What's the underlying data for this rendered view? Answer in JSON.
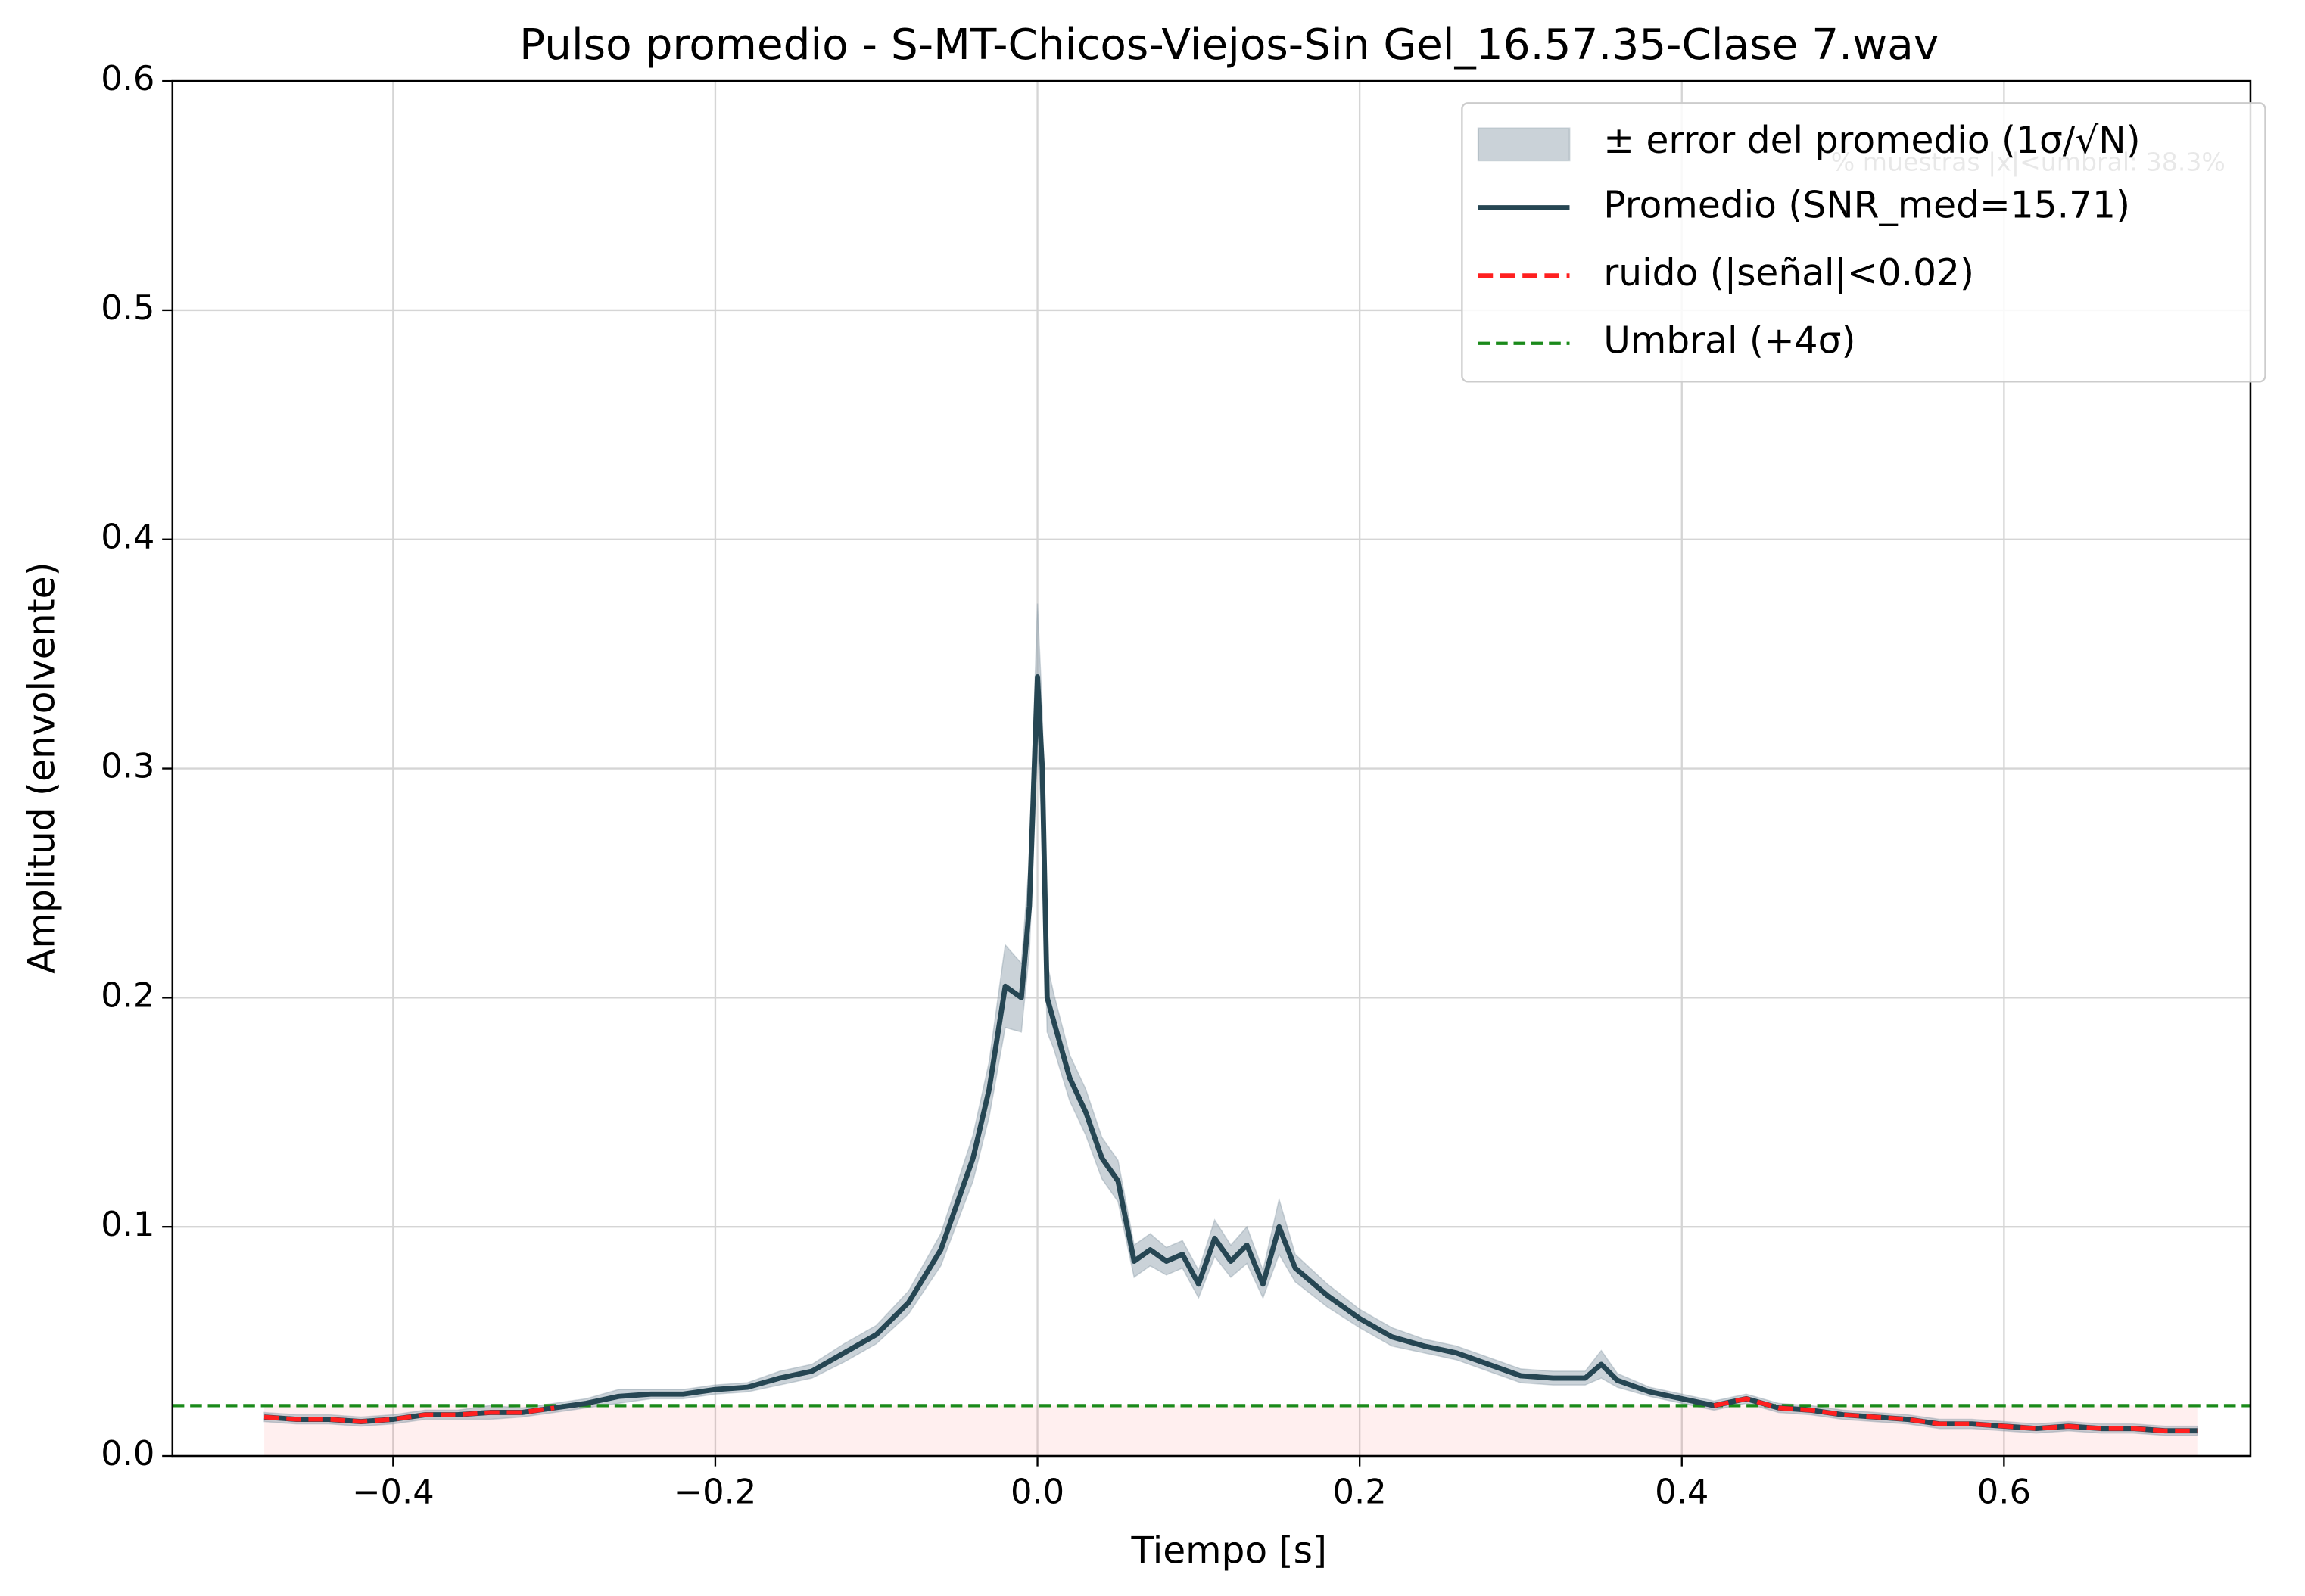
{
  "chart_data": {
    "type": "line",
    "title": "Pulso promedio - S-MT-Chicos-Viejos-Sin Gel_16.57.35-Clase 7.wav",
    "xlabel": "Tiempo [s]",
    "ylabel": "Amplitud (envolvente)",
    "annotation": "% muestras |x|<umbral: 38.3%",
    "x": [
      -0.48,
      -0.46,
      -0.44,
      -0.42,
      -0.4,
      -0.38,
      -0.36,
      -0.34,
      -0.32,
      -0.3,
      -0.28,
      -0.26,
      -0.24,
      -0.22,
      -0.2,
      -0.18,
      -0.16,
      -0.14,
      -0.12,
      -0.1,
      -0.08,
      -0.06,
      -0.04,
      -0.03,
      -0.02,
      -0.01,
      -0.005,
      0.0,
      0.003,
      0.006,
      0.01,
      0.02,
      0.03,
      0.04,
      0.05,
      0.06,
      0.07,
      0.08,
      0.09,
      0.1,
      0.11,
      0.12,
      0.13,
      0.14,
      0.15,
      0.16,
      0.18,
      0.2,
      0.22,
      0.24,
      0.26,
      0.28,
      0.3,
      0.32,
      0.34,
      0.35,
      0.36,
      0.38,
      0.4,
      0.42,
      0.44,
      0.46,
      0.48,
      0.5,
      0.52,
      0.54,
      0.56,
      0.58,
      0.6,
      0.62,
      0.64,
      0.66,
      0.68,
      0.7,
      0.72
    ],
    "series": [
      {
        "name": "Promedio (SNR_med=15.71)",
        "color": "#264653",
        "values": [
          0.017,
          0.016,
          0.016,
          0.015,
          0.016,
          0.018,
          0.018,
          0.019,
          0.019,
          0.021,
          0.023,
          0.026,
          0.027,
          0.027,
          0.029,
          0.03,
          0.034,
          0.037,
          0.045,
          0.053,
          0.067,
          0.09,
          0.13,
          0.16,
          0.205,
          0.2,
          0.24,
          0.34,
          0.3,
          0.2,
          0.19,
          0.165,
          0.15,
          0.13,
          0.12,
          0.085,
          0.09,
          0.085,
          0.088,
          0.075,
          0.095,
          0.085,
          0.092,
          0.075,
          0.1,
          0.082,
          0.07,
          0.06,
          0.052,
          0.048,
          0.045,
          0.04,
          0.035,
          0.034,
          0.034,
          0.04,
          0.033,
          0.028,
          0.025,
          0.022,
          0.025,
          0.021,
          0.02,
          0.018,
          0.017,
          0.016,
          0.014,
          0.014,
          0.013,
          0.012,
          0.013,
          0.012,
          0.012,
          0.011,
          0.011
        ]
      },
      {
        "name": "ruido (|señal|<0.02)",
        "color": "#ff2020",
        "values": [
          0.017,
          0.016,
          0.016,
          0.015,
          0.016,
          0.018,
          0.018,
          0.019,
          0.019,
          0.021,
          null,
          null,
          null,
          null,
          null,
          null,
          null,
          null,
          null,
          null,
          null,
          null,
          null,
          null,
          null,
          null,
          null,
          null,
          null,
          null,
          null,
          null,
          null,
          null,
          null,
          null,
          null,
          null,
          null,
          null,
          null,
          null,
          null,
          null,
          null,
          null,
          null,
          null,
          null,
          null,
          null,
          null,
          null,
          null,
          null,
          null,
          null,
          null,
          null,
          0.022,
          0.025,
          0.021,
          0.02,
          0.018,
          0.017,
          0.016,
          0.014,
          0.014,
          0.013,
          0.012,
          0.013,
          0.012,
          0.012,
          0.011,
          0.011
        ]
      }
    ],
    "error_band": {
      "name": "± error del promedio (1σ/√N)",
      "color": "#8a9ba8",
      "values": [
        0.002,
        0.002,
        0.002,
        0.002,
        0.002,
        0.002,
        0.002,
        0.003,
        0.002,
        0.002,
        0.002,
        0.003,
        0.002,
        0.002,
        0.002,
        0.002,
        0.003,
        0.003,
        0.004,
        0.004,
        0.005,
        0.007,
        0.01,
        0.012,
        0.018,
        0.015,
        0.02,
        0.032,
        0.025,
        0.015,
        0.012,
        0.01,
        0.01,
        0.009,
        0.009,
        0.007,
        0.007,
        0.006,
        0.006,
        0.006,
        0.008,
        0.007,
        0.008,
        0.006,
        0.012,
        0.006,
        0.005,
        0.004,
        0.004,
        0.003,
        0.003,
        0.003,
        0.003,
        0.003,
        0.003,
        0.006,
        0.003,
        0.002,
        0.002,
        0.002,
        0.002,
        0.002,
        0.002,
        0.002,
        0.002,
        0.002,
        0.002,
        0.002,
        0.002,
        0.002,
        0.002,
        0.002,
        0.002,
        0.002,
        0.002
      ]
    },
    "threshold": {
      "name": "Umbral (+4σ)",
      "value": 0.022,
      "color": "#1a8a1a"
    },
    "xlim": [
      -0.537,
      0.753
    ],
    "ylim": [
      0,
      0.6
    ],
    "xticks": [
      {
        "value": -0.4,
        "label": "−0.4"
      },
      {
        "value": -0.2,
        "label": "−0.2"
      },
      {
        "value": 0,
        "label": "0.0"
      },
      0.2,
      0.4,
      0.6
    ],
    "yticks": [
      {
        "value": 0,
        "label": "0.0"
      },
      0.1,
      0.2,
      0.3,
      0.4,
      0.5,
      0.6
    ],
    "grid": true,
    "legend": "upper right"
  }
}
